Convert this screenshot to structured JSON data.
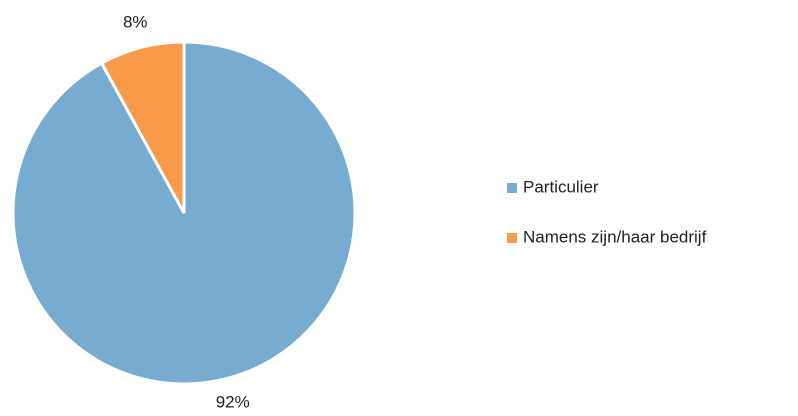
{
  "chart_data": {
    "type": "pie",
    "categories": [
      "Particulier",
      "Namens zijn/haar bedrijf"
    ],
    "values": [
      92,
      8
    ],
    "value_labels": [
      "92%",
      "8%"
    ],
    "colors": [
      "#77acd0",
      "#f79a4a"
    ],
    "legend": "right"
  }
}
